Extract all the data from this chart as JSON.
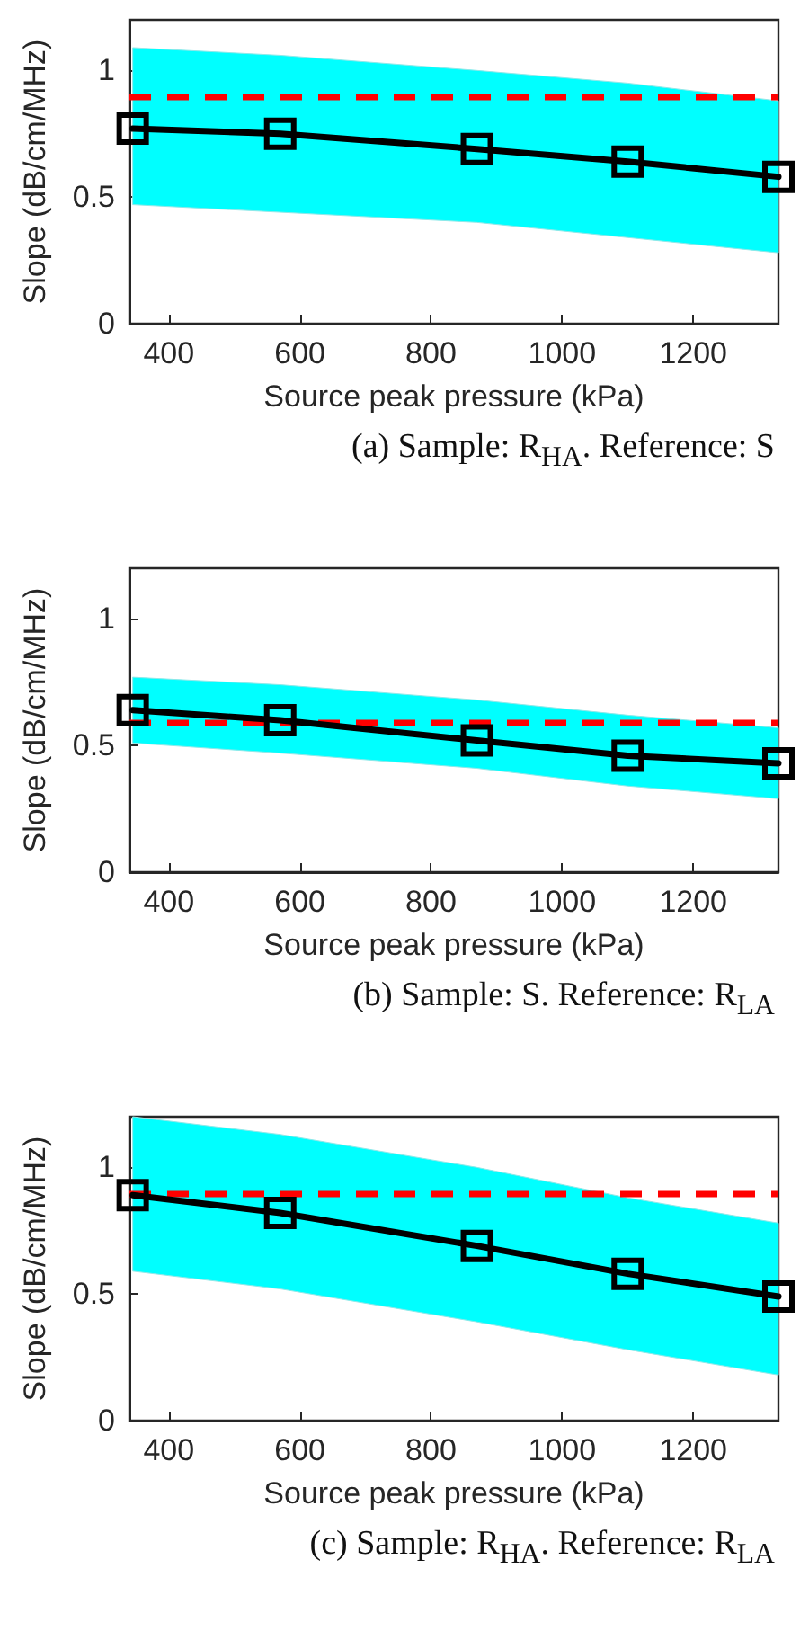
{
  "chart_data": [
    {
      "type": "line",
      "xlabel": "Source peak pressure (kPa)",
      "ylabel": "Slope (dB/cm/MHz)",
      "annotations": [
        "(a) Sample: R$_{HA}$. Reference: S"
      ],
      "x": [
        345,
        570,
        870,
        1100,
        1330
      ],
      "series": [
        {
          "color": "#000000",
          "values": [
            0.77,
            0.75,
            0.69,
            0.64,
            0.58
          ],
          "lower": [
            0.47,
            0.44,
            0.4,
            0.34,
            0.28
          ],
          "upper": [
            1.09,
            1.06,
            1.0,
            0.95,
            0.88
          ]
        }
      ],
      "ref_lines": [
        {
          "axis": "y",
          "value": 0.9,
          "color": "#ff0000",
          "line_style": "dashed"
        }
      ],
      "xlim": [
        340,
        1330
      ],
      "xticks": [
        400,
        600,
        800,
        1000,
        1200
      ],
      "ylim": [
        0,
        1.2
      ],
      "yticks": [
        0,
        0.5,
        1
      ],
      "marker": "square",
      "line_style": "solid"
    },
    {
      "type": "line",
      "xlabel": "Source peak pressure (kPa)",
      "ylabel": "Slope (dB/cm/MHz)",
      "annotations": [
        "(b) Sample: S. Reference: R$_{LA}$"
      ],
      "x": [
        345,
        570,
        870,
        1100,
        1330
      ],
      "series": [
        {
          "color": "#000000",
          "values": [
            0.64,
            0.6,
            0.52,
            0.46,
            0.43
          ],
          "lower": [
            0.51,
            0.47,
            0.41,
            0.34,
            0.29
          ],
          "upper": [
            0.77,
            0.74,
            0.68,
            0.62,
            0.57
          ]
        }
      ],
      "ref_lines": [
        {
          "axis": "y",
          "value": 0.59,
          "color": "#ff0000",
          "line_style": "dashed"
        }
      ],
      "xlim": [
        340,
        1330
      ],
      "xticks": [
        400,
        600,
        800,
        1000,
        1200
      ],
      "ylim": [
        0,
        1.2
      ],
      "yticks": [
        0,
        0.5,
        1
      ],
      "marker": "square",
      "line_style": "solid"
    },
    {
      "type": "line",
      "xlabel": "Source peak pressure (kPa)",
      "ylabel": "Slope (dB/cm/MHz)",
      "annotations": [
        "(c) Sample: R$_{HA}$. Reference: R$_{LA}$"
      ],
      "x": [
        345,
        570,
        870,
        1100,
        1330
      ],
      "series": [
        {
          "color": "#000000",
          "values": [
            0.89,
            0.82,
            0.69,
            0.58,
            0.49
          ],
          "lower": [
            0.59,
            0.52,
            0.39,
            0.28,
            0.18
          ],
          "upper": [
            1.2,
            1.13,
            1.0,
            0.88,
            0.78
          ]
        }
      ],
      "ref_lines": [
        {
          "axis": "y",
          "value": 0.9,
          "color": "#ff0000",
          "line_style": "dashed"
        }
      ],
      "xlim": [
        340,
        1330
      ],
      "xticks": [
        400,
        600,
        800,
        1000,
        1200
      ],
      "ylim": [
        0,
        1.2
      ],
      "yticks": [
        0,
        0.5,
        1
      ],
      "marker": "square",
      "line_style": "solid"
    }
  ]
}
